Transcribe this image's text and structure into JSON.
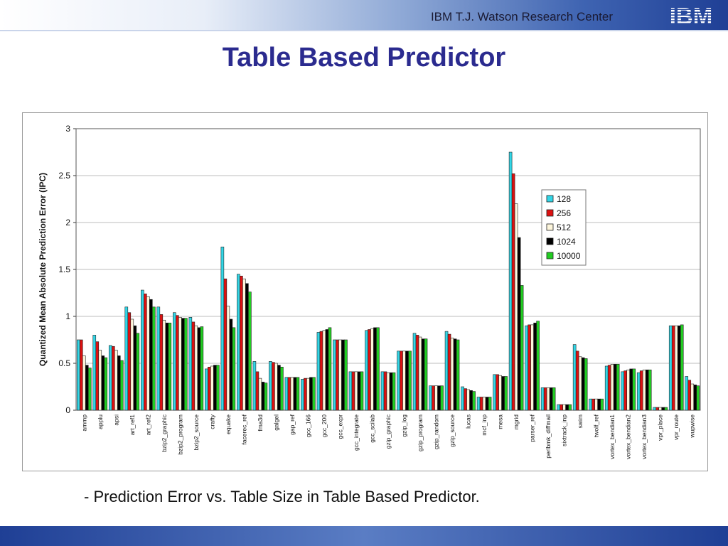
{
  "header": {
    "org": "IBM T.J. Watson Research Center",
    "logo_text": "IBM"
  },
  "slide": {
    "title": "Table Based Predictor",
    "caption": "- Prediction Error vs. Table Size in Table Based Predictor."
  },
  "colors": {
    "series": [
      "#33d6e6",
      "#dd1111",
      "#fdf6dc",
      "#000000",
      "#22cc22"
    ],
    "title": "#2b2b8f"
  },
  "chart_data": {
    "type": "bar",
    "ylabel": "Quantized Mean Absolute Prediction Error (IPC)",
    "ylim": [
      0,
      3
    ],
    "yticks": [
      "0",
      "0.5",
      "1",
      "1.5",
      "2",
      "2.5",
      "3"
    ],
    "legend_position": "right, upper",
    "grid": "horizontal",
    "categories": [
      "ammp",
      "applu",
      "apsi",
      "art_ref1",
      "art_ref2",
      "bzip2_graphic",
      "bzip2_program",
      "bzip2_source",
      "crafty",
      "equake",
      "facerec_ref",
      "fma3d",
      "galgel",
      "gap_ref",
      "gcc_166",
      "gcc_200",
      "gcc_expr",
      "gcc_integrate",
      "gcc_scilab",
      "gzip_graphic",
      "gzip_log",
      "gzip_program",
      "gzip_random",
      "gzip_source",
      "lucas",
      "mcf_inp",
      "mesa",
      "mgrid",
      "parser_ref",
      "perlbmk_diffmail",
      "sixtrack_inp",
      "swim",
      "twolf_ref",
      "vortex_bendian1",
      "vortex_bendian2",
      "vortex_bendian3",
      "vpr_place",
      "vpr_route",
      "wupwise"
    ],
    "series": [
      {
        "name": "128",
        "values": [
          0.75,
          0.8,
          0.69,
          1.1,
          1.28,
          1.1,
          1.04,
          0.99,
          0.44,
          1.74,
          1.45,
          0.52,
          0.52,
          0.35,
          0.33,
          0.83,
          0.75,
          0.41,
          0.85,
          0.41,
          0.63,
          0.82,
          0.26,
          0.84,
          0.25,
          0.14,
          0.38,
          2.75,
          0.9,
          0.24,
          0.06,
          0.7,
          0.12,
          0.47,
          0.41,
          0.4,
          0.03,
          0.9,
          0.36
        ]
      },
      {
        "name": "256",
        "values": [
          0.75,
          0.73,
          0.68,
          1.04,
          1.24,
          1.02,
          1.01,
          0.94,
          0.46,
          1.4,
          1.43,
          0.41,
          0.51,
          0.35,
          0.34,
          0.84,
          0.75,
          0.41,
          0.86,
          0.41,
          0.63,
          0.8,
          0.26,
          0.81,
          0.23,
          0.14,
          0.38,
          2.52,
          0.91,
          0.24,
          0.06,
          0.63,
          0.12,
          0.48,
          0.42,
          0.42,
          0.03,
          0.9,
          0.32
        ]
      },
      {
        "name": "512",
        "values": [
          0.58,
          0.64,
          0.64,
          0.97,
          1.21,
          0.96,
          0.99,
          0.9,
          0.47,
          1.11,
          1.4,
          0.34,
          0.5,
          0.35,
          0.34,
          0.85,
          0.75,
          0.41,
          0.87,
          0.4,
          0.63,
          0.78,
          0.26,
          0.77,
          0.22,
          0.14,
          0.37,
          2.2,
          0.91,
          0.24,
          0.06,
          0.57,
          0.12,
          0.49,
          0.43,
          0.43,
          0.03,
          0.9,
          0.28
        ]
      },
      {
        "name": "1024",
        "values": [
          0.48,
          0.58,
          0.58,
          0.9,
          1.18,
          0.93,
          0.98,
          0.88,
          0.48,
          0.97,
          1.35,
          0.3,
          0.48,
          0.35,
          0.35,
          0.86,
          0.75,
          0.41,
          0.88,
          0.4,
          0.63,
          0.76,
          0.26,
          0.76,
          0.21,
          0.14,
          0.36,
          1.84,
          0.93,
          0.24,
          0.06,
          0.56,
          0.12,
          0.49,
          0.44,
          0.43,
          0.03,
          0.9,
          0.27
        ]
      },
      {
        "name": "10000",
        "values": [
          0.45,
          0.56,
          0.53,
          0.82,
          1.1,
          0.93,
          0.98,
          0.89,
          0.48,
          0.88,
          1.26,
          0.29,
          0.46,
          0.35,
          0.35,
          0.88,
          0.75,
          0.41,
          0.88,
          0.4,
          0.63,
          0.76,
          0.26,
          0.75,
          0.2,
          0.14,
          0.36,
          1.33,
          0.95,
          0.24,
          0.06,
          0.55,
          0.12,
          0.49,
          0.44,
          0.43,
          0.03,
          0.91,
          0.26
        ]
      }
    ]
  }
}
